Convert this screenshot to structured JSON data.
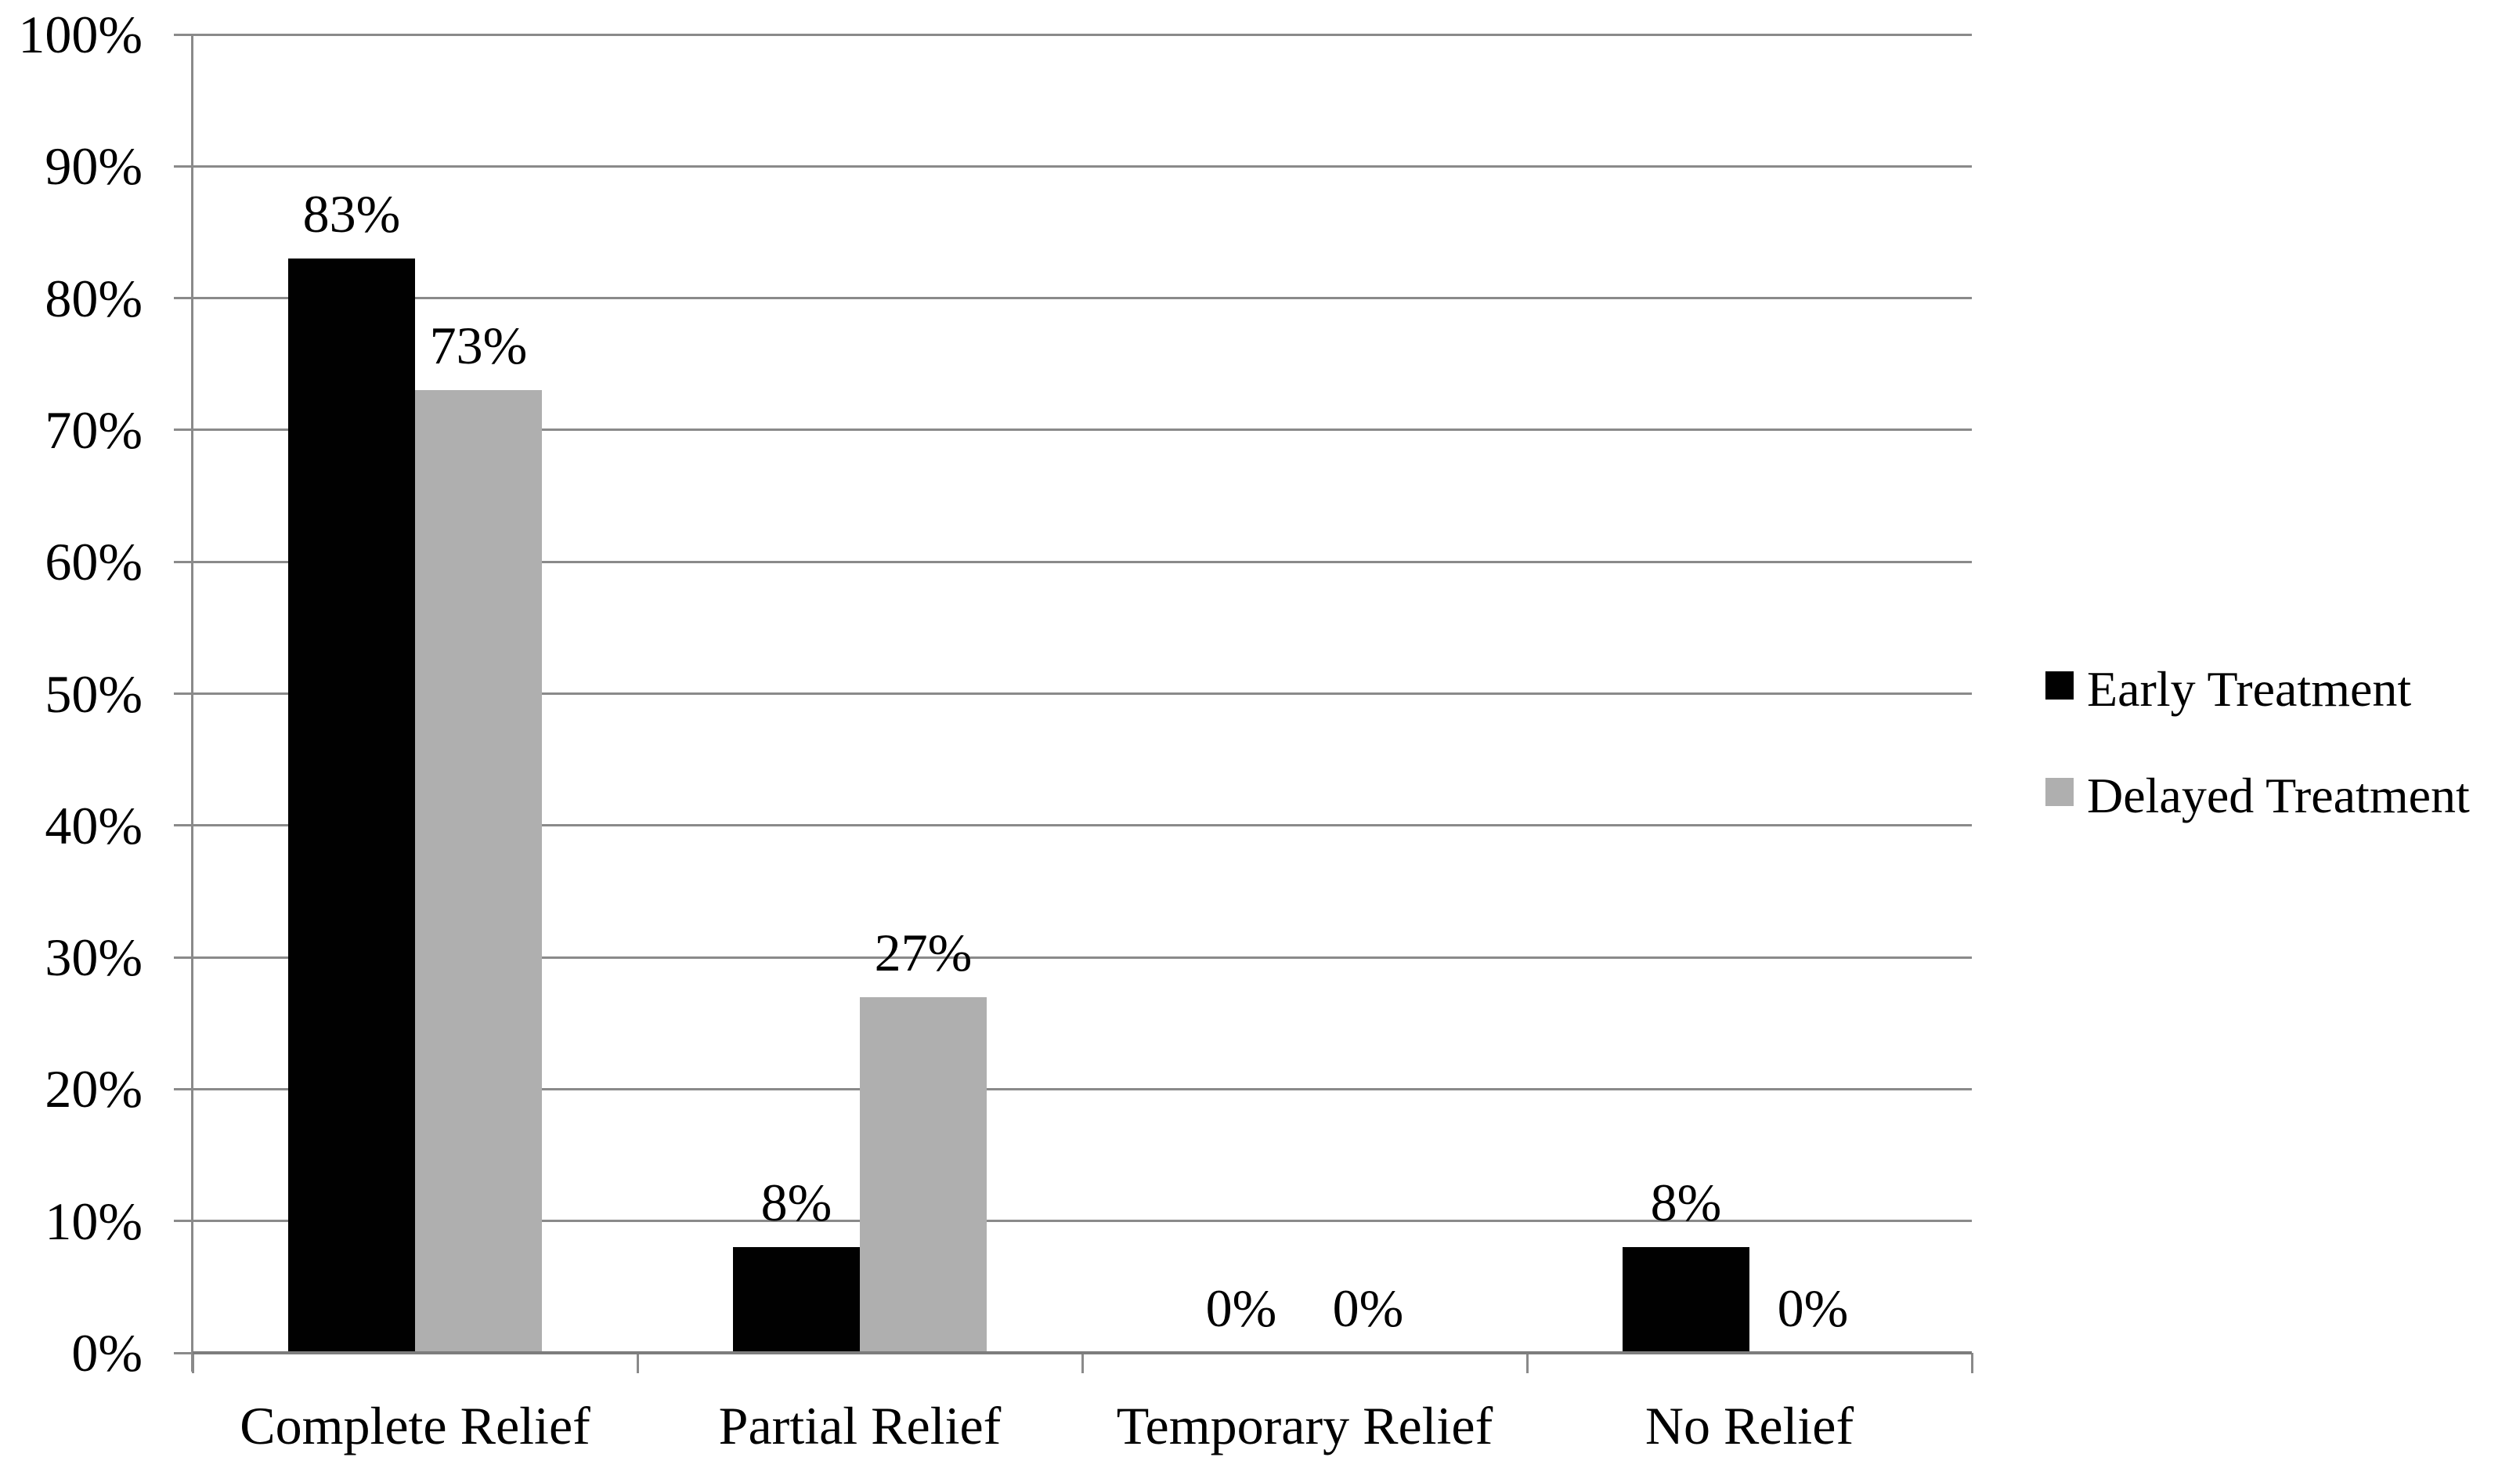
{
  "chart_data": {
    "type": "bar",
    "title": "",
    "categories": [
      "Complete Relief",
      "Partial Relief",
      "Temporary Relief",
      "No Relief"
    ],
    "series": [
      {
        "name": "Early Treatment",
        "color": "#010101",
        "values": [
          83,
          8,
          0,
          8
        ],
        "labels": [
          "83%",
          "8%",
          "0%",
          "8%"
        ]
      },
      {
        "name": "Delayed Treatment",
        "color": "#afafaf",
        "values": [
          73,
          27,
          0,
          0
        ],
        "labels": [
          "73%",
          "27%",
          "0%",
          "0%"
        ]
      }
    ],
    "xlabel": "",
    "ylabel": "",
    "ylim": [
      0,
      100
    ],
    "yticks": [
      0,
      10,
      20,
      30,
      40,
      50,
      60,
      70,
      80,
      90,
      100
    ],
    "ytick_labels": [
      "0%",
      "10%",
      "20%",
      "30%",
      "40%",
      "50%",
      "60%",
      "70%",
      "80%",
      "90%",
      "100%"
    ],
    "grid": true,
    "legend_position": "right"
  },
  "colors": {
    "bar_early": "#010101",
    "bar_delayed": "#afafaf",
    "gridline": "#8a8a8a",
    "axis": "#7d7d7d",
    "text": "#000000",
    "background": "#ffffff"
  }
}
